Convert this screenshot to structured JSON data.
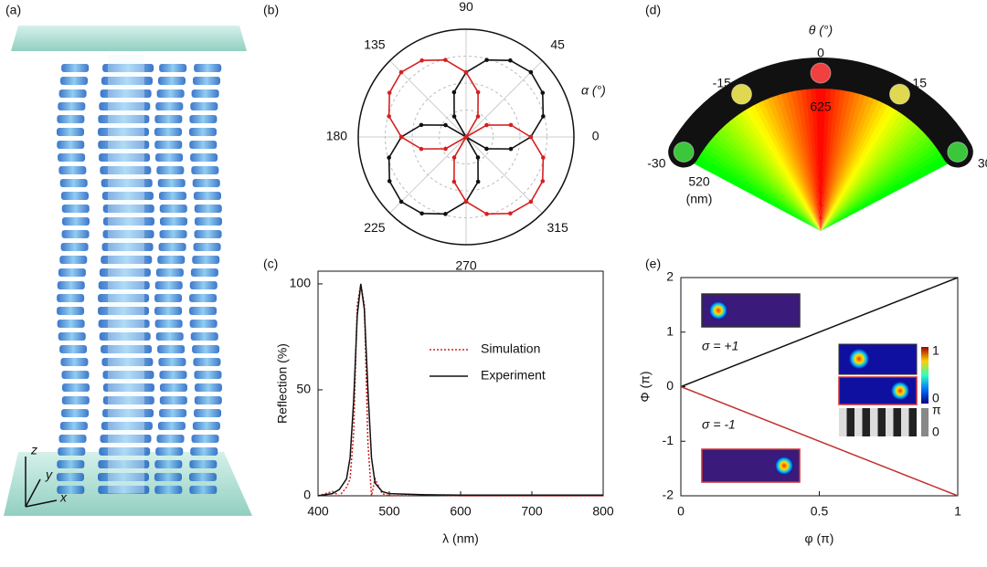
{
  "figure_a": {
    "panel_label": "(a)",
    "axes": [
      "z",
      "y",
      "x"
    ]
  },
  "chart_data": [
    {
      "type": "polar",
      "panel_label": "(b)",
      "axis_label": "α (°)",
      "angle_ticks": [
        0,
        45,
        90,
        135,
        180,
        225,
        270,
        315
      ],
      "angles": [
        0,
        15,
        30,
        45,
        60,
        75,
        90,
        105,
        120,
        135,
        150,
        165,
        180,
        195,
        210,
        225,
        240,
        255,
        270,
        285,
        300,
        315,
        330,
        345
      ],
      "rlim": [
        0,
        1
      ],
      "series": [
        {
          "color": "#111111",
          "values": [
            0.6,
            0.74,
            0.82,
            0.85,
            0.82,
            0.74,
            0.6,
            0.43,
            0.22,
            0,
            0.22,
            0.43,
            0.6,
            0.74,
            0.82,
            0.85,
            0.82,
            0.74,
            0.6,
            0.43,
            0.22,
            0,
            0.22,
            0.43
          ]
        },
        {
          "color": "#d62020",
          "values": [
            0.6,
            0.43,
            0.22,
            0,
            0.22,
            0.43,
            0.6,
            0.74,
            0.82,
            0.85,
            0.82,
            0.74,
            0.6,
            0.43,
            0.22,
            0,
            0.22,
            0.43,
            0.6,
            0.74,
            0.82,
            0.85,
            0.82,
            0.74
          ]
        }
      ]
    },
    {
      "type": "line",
      "panel_label": "(c)",
      "x_label": "λ (nm)",
      "y_label": "Reflection (%)",
      "x": [
        400,
        420,
        430,
        440,
        445,
        450,
        455,
        460,
        465,
        470,
        475,
        480,
        490,
        500,
        550,
        600,
        650,
        700,
        750,
        800
      ],
      "xlim": [
        400,
        800
      ],
      "xticks": [
        400,
        500,
        600,
        700,
        800
      ],
      "ylim": [
        0,
        106
      ],
      "yticks": [
        0,
        50,
        100
      ],
      "series": [
        {
          "name": "Simulation",
          "color": "#d62020",
          "style": "dotted",
          "values": [
            0,
            2,
            0,
            4,
            8,
            30,
            90,
            100,
            90,
            25,
            0,
            8,
            1,
            0,
            0.5,
            0,
            0,
            0,
            0,
            0
          ]
        },
        {
          "name": "Experiment",
          "color": "#111111",
          "style": "solid",
          "values": [
            0,
            1,
            3,
            8,
            18,
            45,
            85,
            100,
            88,
            50,
            18,
            6,
            2,
            1,
            0.5,
            0.3,
            0.3,
            0.3,
            0.3,
            0.3
          ]
        }
      ]
    },
    {
      "type": "fan",
      "panel_label": "(d)",
      "axis_label": "θ (°)",
      "angles": [
        -30,
        -15,
        0,
        15,
        30
      ],
      "colors": [
        "#3cc63c",
        "#e0d850",
        "#f04040",
        "#e0d850",
        "#3cc63c"
      ],
      "center_label": "625",
      "edge_label": "520",
      "unit": "(nm)"
    },
    {
      "type": "line",
      "panel_label": "(e)",
      "x_label": "φ (π)",
      "y_label": "Φ (π)",
      "x": [
        0,
        1
      ],
      "xlim": [
        0,
        1
      ],
      "xticks": [
        0,
        0.5,
        1
      ],
      "ylim": [
        -2,
        2
      ],
      "yticks": [
        -2,
        -1,
        0,
        1,
        2
      ],
      "series": [
        {
          "color": "#111111",
          "style": "solid",
          "values": [
            0,
            2
          ]
        },
        {
          "color": "#c03030",
          "style": "solid",
          "values": [
            0,
            -2
          ]
        }
      ],
      "annotations": [
        "σ = +1",
        "σ = -1"
      ],
      "colorbar_ticks": [
        "1",
        "0"
      ],
      "phase_ticks": [
        "π",
        "0"
      ]
    }
  ]
}
